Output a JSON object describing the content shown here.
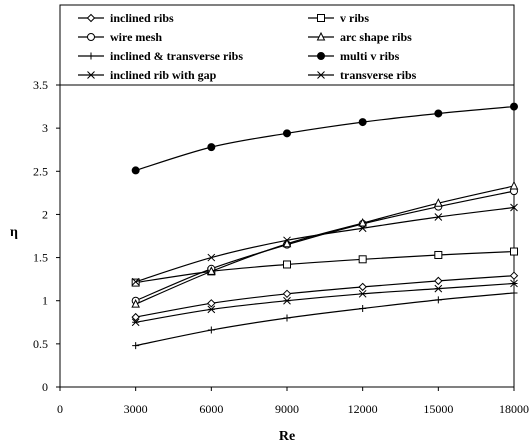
{
  "chart_data": {
    "type": "line",
    "xlabel": "Re",
    "ylabel": "η",
    "x_ticks": [
      0,
      3000,
      6000,
      9000,
      12000,
      15000,
      18000
    ],
    "y_ticks": [
      0,
      0.5,
      1,
      1.5,
      2,
      2.5,
      3,
      3.5
    ],
    "xlim": [
      0,
      18000
    ],
    "ylim": [
      0,
      3.5
    ],
    "grid": false,
    "legend_position": "top",
    "x": [
      3000,
      6000,
      9000,
      12000,
      15000,
      18000
    ],
    "series": [
      {
        "name": "inclined ribs",
        "marker": "diamond",
        "values": [
          0.81,
          0.97,
          1.08,
          1.16,
          1.23,
          1.29
        ]
      },
      {
        "name": "v ribs",
        "marker": "square",
        "values": [
          1.21,
          1.34,
          1.42,
          1.48,
          1.53,
          1.57
        ]
      },
      {
        "name": "wire mesh",
        "marker": "circle",
        "values": [
          1.0,
          1.37,
          1.65,
          1.89,
          2.09,
          2.27
        ]
      },
      {
        "name": "arc shape ribs",
        "marker": "triangle",
        "values": [
          0.96,
          1.34,
          1.66,
          1.9,
          2.13,
          2.33
        ]
      },
      {
        "name": "inclined & transverse ribs",
        "marker": "plus",
        "values": [
          0.48,
          0.66,
          0.8,
          0.91,
          1.01,
          1.09
        ]
      },
      {
        "name": "multi v ribs",
        "marker": "filled-circle",
        "values": [
          2.51,
          2.78,
          2.94,
          3.07,
          3.17,
          3.25
        ]
      },
      {
        "name": "inclined rib with gap",
        "marker": "x",
        "values": [
          1.22,
          1.5,
          1.7,
          1.84,
          1.97,
          2.08
        ]
      },
      {
        "name": "transverse ribs",
        "marker": "star",
        "values": [
          0.75,
          0.9,
          1.0,
          1.08,
          1.14,
          1.2
        ]
      }
    ]
  }
}
